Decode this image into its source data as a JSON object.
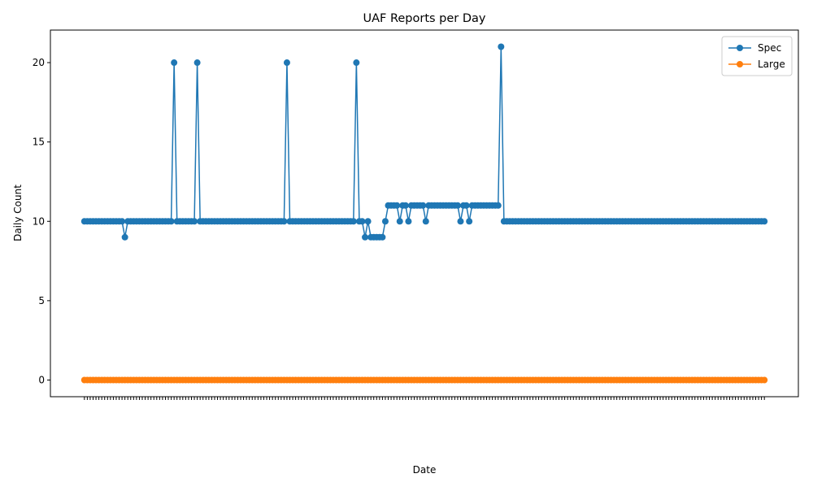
{
  "chart_data": {
    "type": "line",
    "title": "UAF Reports per Day",
    "x_label": "Date",
    "y_label": "Daily Count",
    "categories": [
      null,
      null,
      null,
      null,
      null,
      null,
      null,
      null,
      null,
      null,
      null,
      null,
      null,
      null,
      null,
      null,
      null,
      null,
      null,
      null,
      null,
      null,
      null,
      null,
      null,
      null,
      null,
      null,
      null,
      null,
      null,
      null,
      null,
      null,
      null,
      null,
      null,
      null,
      null,
      null,
      null,
      null,
      null,
      null,
      null,
      null,
      null,
      null,
      null,
      null,
      null,
      null,
      null,
      null,
      null,
      null,
      null,
      null,
      null,
      null,
      null,
      null,
      null,
      null,
      null,
      null,
      null,
      null,
      null,
      null,
      null,
      null,
      null,
      null,
      null,
      null,
      null,
      null,
      null,
      null,
      null,
      null,
      null,
      null,
      null,
      null,
      null,
      null,
      null,
      null,
      null,
      null,
      null,
      null,
      null,
      null,
      null,
      null,
      null,
      null,
      null,
      null,
      null,
      null,
      null,
      null,
      null,
      null,
      null,
      null,
      null,
      null,
      null,
      null,
      null,
      null,
      null,
      null,
      null,
      null,
      null,
      null,
      null,
      null,
      null,
      null,
      null,
      null,
      null,
      null,
      null,
      null,
      null,
      null,
      null,
      null,
      null,
      null,
      null,
      null,
      null,
      null,
      null,
      null,
      null,
      null,
      null,
      null,
      null,
      null,
      null,
      null,
      null,
      null,
      null,
      null,
      null,
      null,
      null,
      null,
      null,
      null,
      null,
      null,
      null,
      null,
      null,
      null,
      null,
      null,
      null,
      null,
      null,
      null,
      null,
      null,
      null,
      null,
      null,
      null,
      null,
      null,
      null,
      null,
      null,
      null,
      null,
      null,
      null,
      null,
      null,
      null,
      null,
      null,
      null,
      null,
      null,
      null,
      null,
      null,
      null,
      null,
      null,
      null,
      null,
      null,
      null,
      null,
      null,
      null,
      null,
      null,
      null,
      null,
      null,
      null,
      null,
      null,
      null,
      null,
      null,
      null,
      null,
      null,
      null,
      null,
      null,
      null,
      null,
      null,
      null,
      null,
      null,
      null,
      null,
      null
    ],
    "series": [
      {
        "name": "Spec",
        "color": "#1f77b4",
        "values": [
          10,
          10,
          10,
          10,
          10,
          10,
          10,
          10,
          10,
          10,
          10,
          10,
          10,
          10,
          9,
          10,
          10,
          10,
          10,
          10,
          10,
          10,
          10,
          10,
          10,
          10,
          10,
          10,
          10,
          10,
          10,
          20,
          10,
          10,
          10,
          10,
          10,
          10,
          10,
          20,
          10,
          10,
          10,
          10,
          10,
          10,
          10,
          10,
          10,
          10,
          10,
          10,
          10,
          10,
          10,
          10,
          10,
          10,
          10,
          10,
          10,
          10,
          10,
          10,
          10,
          10,
          10,
          10,
          10,
          10,
          20,
          10,
          10,
          10,
          10,
          10,
          10,
          10,
          10,
          10,
          10,
          10,
          10,
          10,
          10,
          10,
          10,
          10,
          10,
          10,
          10,
          10,
          10,
          10,
          20,
          10,
          10,
          9,
          10,
          9,
          9,
          9,
          9,
          9,
          10,
          11,
          11,
          11,
          11,
          10,
          11,
          11,
          10,
          11,
          11,
          11,
          11,
          11,
          10,
          11,
          11,
          11,
          11,
          11,
          11,
          11,
          11,
          11,
          11,
          11,
          10,
          11,
          11,
          10,
          11,
          11,
          11,
          11,
          11,
          11,
          11,
          11,
          11,
          11,
          21,
          10,
          10,
          10,
          10,
          10,
          10,
          10,
          10,
          10,
          10,
          10,
          10,
          10,
          10,
          10,
          10,
          10,
          10,
          10,
          10,
          10,
          10,
          10,
          10,
          10,
          10,
          10,
          10,
          10,
          10,
          10,
          10,
          10,
          10,
          10,
          10,
          10,
          10,
          10,
          10,
          10,
          10,
          10,
          10,
          10,
          10,
          10,
          10,
          10,
          10,
          10,
          10,
          10,
          10,
          10,
          10,
          10,
          10,
          10,
          10,
          10,
          10,
          10,
          10,
          10,
          10,
          10,
          10,
          10,
          10,
          10,
          10,
          10,
          10,
          10,
          10,
          10,
          10,
          10,
          10,
          10,
          10,
          10,
          10,
          10,
          10,
          10,
          10,
          10,
          10,
          10
        ]
      },
      {
        "name": "Large",
        "color": "#ff7f0e",
        "values": [
          0,
          0,
          0,
          0,
          0,
          0,
          0,
          0,
          0,
          0,
          0,
          0,
          0,
          0,
          0,
          0,
          0,
          0,
          0,
          0,
          0,
          0,
          0,
          0,
          0,
          0,
          0,
          0,
          0,
          0,
          0,
          0,
          0,
          0,
          0,
          0,
          0,
          0,
          0,
          0,
          0,
          0,
          0,
          0,
          0,
          0,
          0,
          0,
          0,
          0,
          0,
          0,
          0,
          0,
          0,
          0,
          0,
          0,
          0,
          0,
          0,
          0,
          0,
          0,
          0,
          0,
          0,
          0,
          0,
          0,
          0,
          0,
          0,
          0,
          0,
          0,
          0,
          0,
          0,
          0,
          0,
          0,
          0,
          0,
          0,
          0,
          0,
          0,
          0,
          0,
          0,
          0,
          0,
          0,
          0,
          0,
          0,
          0,
          0,
          0,
          0,
          0,
          0,
          0,
          0,
          0,
          0,
          0,
          0,
          0,
          0,
          0,
          0,
          0,
          0,
          0,
          0,
          0,
          0,
          0,
          0,
          0,
          0,
          0,
          0,
          0,
          0,
          0,
          0,
          0,
          0,
          0,
          0,
          0,
          0,
          0,
          0,
          0,
          0,
          0,
          0,
          0,
          0,
          0,
          0,
          0,
          0,
          0,
          0,
          0,
          0,
          0,
          0,
          0,
          0,
          0,
          0,
          0,
          0,
          0,
          0,
          0,
          0,
          0,
          0,
          0,
          0,
          0,
          0,
          0,
          0,
          0,
          0,
          0,
          0,
          0,
          0,
          0,
          0,
          0,
          0,
          0,
          0,
          0,
          0,
          0,
          0,
          0,
          0,
          0,
          0,
          0,
          0,
          0,
          0,
          0,
          0,
          0,
          0,
          0,
          0,
          0,
          0,
          0,
          0,
          0,
          0,
          0,
          0,
          0,
          0,
          0,
          0,
          0,
          0,
          0,
          0,
          0,
          0,
          0,
          0,
          0,
          0,
          0,
          0,
          0,
          0,
          0,
          0,
          0,
          0,
          0,
          0,
          0,
          0,
          0
        ]
      }
    ],
    "ylim": [
      -1.05,
      22.05
    ],
    "yticks": [
      0,
      5,
      10,
      15,
      20
    ],
    "grid": false,
    "legend": "upper-right"
  }
}
